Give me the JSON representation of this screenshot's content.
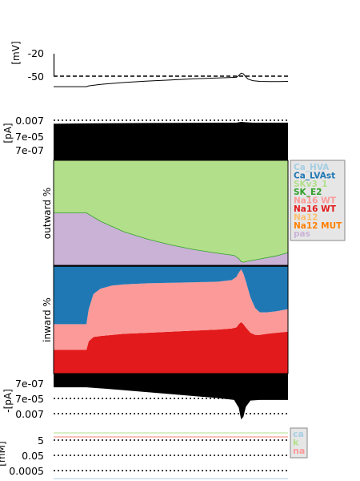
{
  "chart_data": [
    {
      "panel": "voltage",
      "type": "line",
      "ylabel": "[mV]",
      "yticks": [
        "-20",
        "-50"
      ],
      "ytick_values": [
        -20,
        -50
      ],
      "ylim": [
        -80,
        -10
      ],
      "reference_line": {
        "value": -50,
        "style": "dashed"
      },
      "series": [
        {
          "name": "",
          "color": "#000000",
          "x": [
            0,
            5,
            10,
            14,
            15,
            20,
            30,
            40,
            50,
            60,
            70,
            78,
            79,
            80,
            81,
            82,
            83,
            85,
            88,
            92,
            96,
            100
          ],
          "y": [
            -64,
            -64,
            -64,
            -64,
            -63,
            -61,
            -58.5,
            -56.5,
            -55,
            -53.5,
            -52.5,
            -51.5,
            -49,
            -46,
            -47,
            -51,
            -54,
            -56,
            -57,
            -57.3,
            -57.2,
            -57
          ]
        }
      ],
      "xlim": [
        0,
        100
      ],
      "start_marker": {
        "x": 0,
        "y_from": -50,
        "y_to": -28
      }
    },
    {
      "panel": "outward-current-magnitude",
      "type": "area",
      "ylabel": "[pA]",
      "yticks": [
        "0.007",
        "7e-05",
        "7e-07"
      ],
      "scale": "log",
      "reference_lines": [
        "0.007",
        "7e-05"
      ],
      "top_edge": {
        "x": [
          0,
          14,
          40,
          70,
          78,
          80,
          82,
          85,
          100
        ],
        "level": [
          0.95,
          0.96,
          0.97,
          0.98,
          0.98,
          1.0,
          0.99,
          0.98,
          0.98
        ]
      },
      "fill": "#000000"
    },
    {
      "panel": "outward-share",
      "type": "area",
      "ylabel": "outward %",
      "stacked": true,
      "x": [
        0,
        14,
        20,
        30,
        40,
        50,
        60,
        70,
        77,
        79,
        80,
        81,
        82,
        84,
        88,
        95,
        100
      ],
      "series": [
        {
          "name": "pas",
          "color": "#cab2d6",
          "values": [
            50,
            50,
            42,
            32,
            25,
            19.5,
            15,
            11.5,
            9.5,
            6.5,
            3.5,
            3,
            3.5,
            4.5,
            6,
            9,
            12
          ]
        },
        {
          "name": "SKv3_1",
          "color": "#b2df8a",
          "values": [
            50,
            50,
            58,
            68,
            75,
            80.5,
            85,
            88.5,
            90.5,
            93.5,
            96.5,
            97,
            96.5,
            95.5,
            94,
            91,
            88
          ]
        }
      ],
      "ylim": [
        0,
        100
      ]
    },
    {
      "panel": "inward-share",
      "type": "area",
      "ylabel": "inward %",
      "stacked": true,
      "x": [
        0,
        13,
        14,
        15,
        17,
        20,
        25,
        30,
        40,
        50,
        60,
        70,
        76,
        78,
        79,
        80,
        81,
        82,
        84,
        86,
        88,
        91,
        95,
        100
      ],
      "series": [
        {
          "name": "Na16 WT",
          "color": "#e31a1c",
          "values": [
            22,
            22,
            22,
            30,
            34,
            35,
            36,
            37,
            38,
            39,
            40,
            41,
            42,
            43,
            46,
            48,
            46,
            43,
            38,
            36,
            36,
            37,
            38,
            39
          ]
        },
        {
          "name": "Na16 WT",
          "color": "#fb9a99",
          "values": [
            24,
            24,
            24,
            30,
            40,
            44,
            46,
            46,
            46,
            45.5,
            45,
            44.5,
            45,
            47,
            48,
            49,
            47,
            43,
            33,
            25,
            21,
            20,
            20,
            21
          ]
        },
        {
          "name": "Ca_LVAst",
          "color": "#1f78b4",
          "values": [
            54,
            54,
            54,
            40,
            26,
            21,
            18,
            17,
            16,
            15.5,
            15,
            14.5,
            13,
            10,
            6,
            3,
            7,
            14,
            29,
            39,
            43,
            43,
            42,
            40
          ]
        }
      ],
      "ylim": [
        0,
        100
      ]
    },
    {
      "panel": "inward-current-magnitude",
      "type": "area",
      "ylabel": "-[pA]",
      "yticks": [
        "7e-07",
        "7e-05",
        "0.007"
      ],
      "scale": "log",
      "reference_lines": [
        "7e-05",
        "0.007"
      ],
      "bottom_edge": {
        "x": [
          0,
          14,
          30,
          50,
          70,
          77,
          79,
          80,
          81,
          82,
          84,
          88,
          100
        ],
        "level": [
          0.72,
          0.72,
          0.66,
          0.58,
          0.5,
          0.46,
          0.3,
          0.06,
          0.12,
          0.32,
          0.45,
          0.46,
          0.46
        ]
      },
      "fill": "#000000"
    },
    {
      "panel": "concentrations",
      "type": "line",
      "ylabel": "[mM]",
      "yticks": [
        "5",
        "0.05",
        "0.0005"
      ],
      "scale": "log",
      "reference_lines": [
        "5",
        "0.05",
        "0.0005"
      ],
      "series": [
        {
          "name": "ca",
          "color": "#a6cee3"
        },
        {
          "name": "k",
          "color": "#b2df8a"
        },
        {
          "name": "na",
          "color": "#fb9a99"
        }
      ]
    }
  ],
  "legend_main": {
    "placement": "right",
    "items": [
      {
        "label": "Ca_HVA",
        "color": "#a6cee3"
      },
      {
        "label": "Ca_LVAst",
        "color": "#1f78b4"
      },
      {
        "label": "SKv3_1",
        "color": "#b2df8a"
      },
      {
        "label": "SK_E2",
        "color": "#33a02c"
      },
      {
        "label": "Na16 WT",
        "color": "#fb9a99"
      },
      {
        "label": "Na16 WT",
        "color": "#e31a1c"
      },
      {
        "label": "Na12",
        "color": "#fdbf6f"
      },
      {
        "label": "Na12 MUT",
        "color": "#ff7f00"
      },
      {
        "label": "pas",
        "color": "#cab2d6"
      }
    ]
  },
  "legend_conc": {
    "placement": "right",
    "items": [
      {
        "label": "ca",
        "color": "#a6cee3"
      },
      {
        "label": "k",
        "color": "#b2df8a"
      },
      {
        "label": "na",
        "color": "#fb9a99"
      }
    ]
  }
}
